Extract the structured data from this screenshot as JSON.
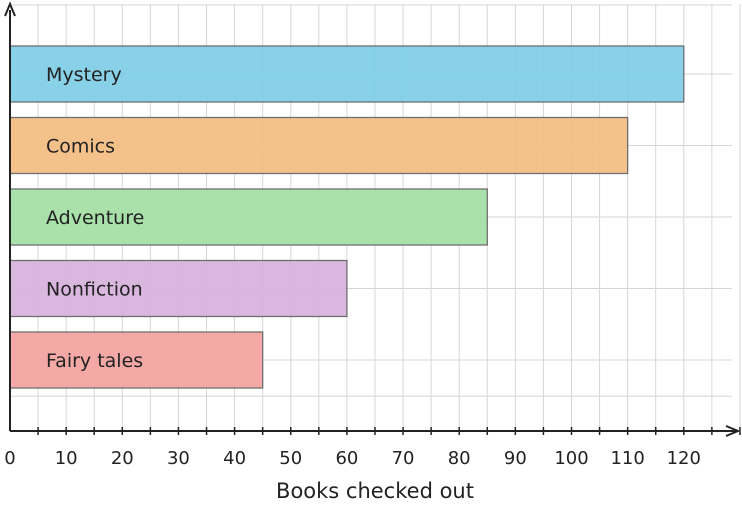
{
  "chart_data": {
    "type": "bar",
    "orientation": "horizontal",
    "categories": [
      "Mystery",
      "Comics",
      "Adventure",
      "Nonfiction",
      "Fairy tales"
    ],
    "values": [
      120,
      110,
      85,
      60,
      45
    ],
    "colors": [
      "#7ecde6",
      "#f3bc80",
      "#a3dea3",
      "#d6b1dc",
      "#f3a29e"
    ],
    "xlabel": "Books checked out",
    "xlim": [
      0,
      130
    ],
    "x_ticks": [
      0,
      10,
      20,
      30,
      40,
      50,
      60,
      70,
      80,
      90,
      100,
      110,
      120
    ],
    "grid": true
  }
}
